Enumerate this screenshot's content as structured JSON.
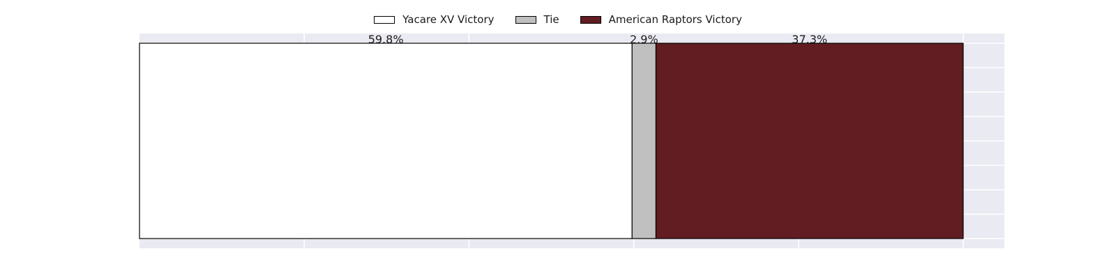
{
  "chart_data": {
    "type": "bar",
    "orientation": "horizontal",
    "stacked": true,
    "series": [
      {
        "name": "Yacare XV Victory",
        "values": [
          59.8
        ],
        "label": "59.8%",
        "color": "#ffffff"
      },
      {
        "name": "Tie",
        "values": [
          2.9
        ],
        "label": "2.9%",
        "color": "#c0c0c0"
      },
      {
        "name": "American Raptors Victory",
        "values": [
          37.3
        ],
        "label": "37.3%",
        "color": "#621d22"
      }
    ],
    "xlim": [
      0,
      105
    ],
    "grid": true,
    "legend": "top-center"
  }
}
